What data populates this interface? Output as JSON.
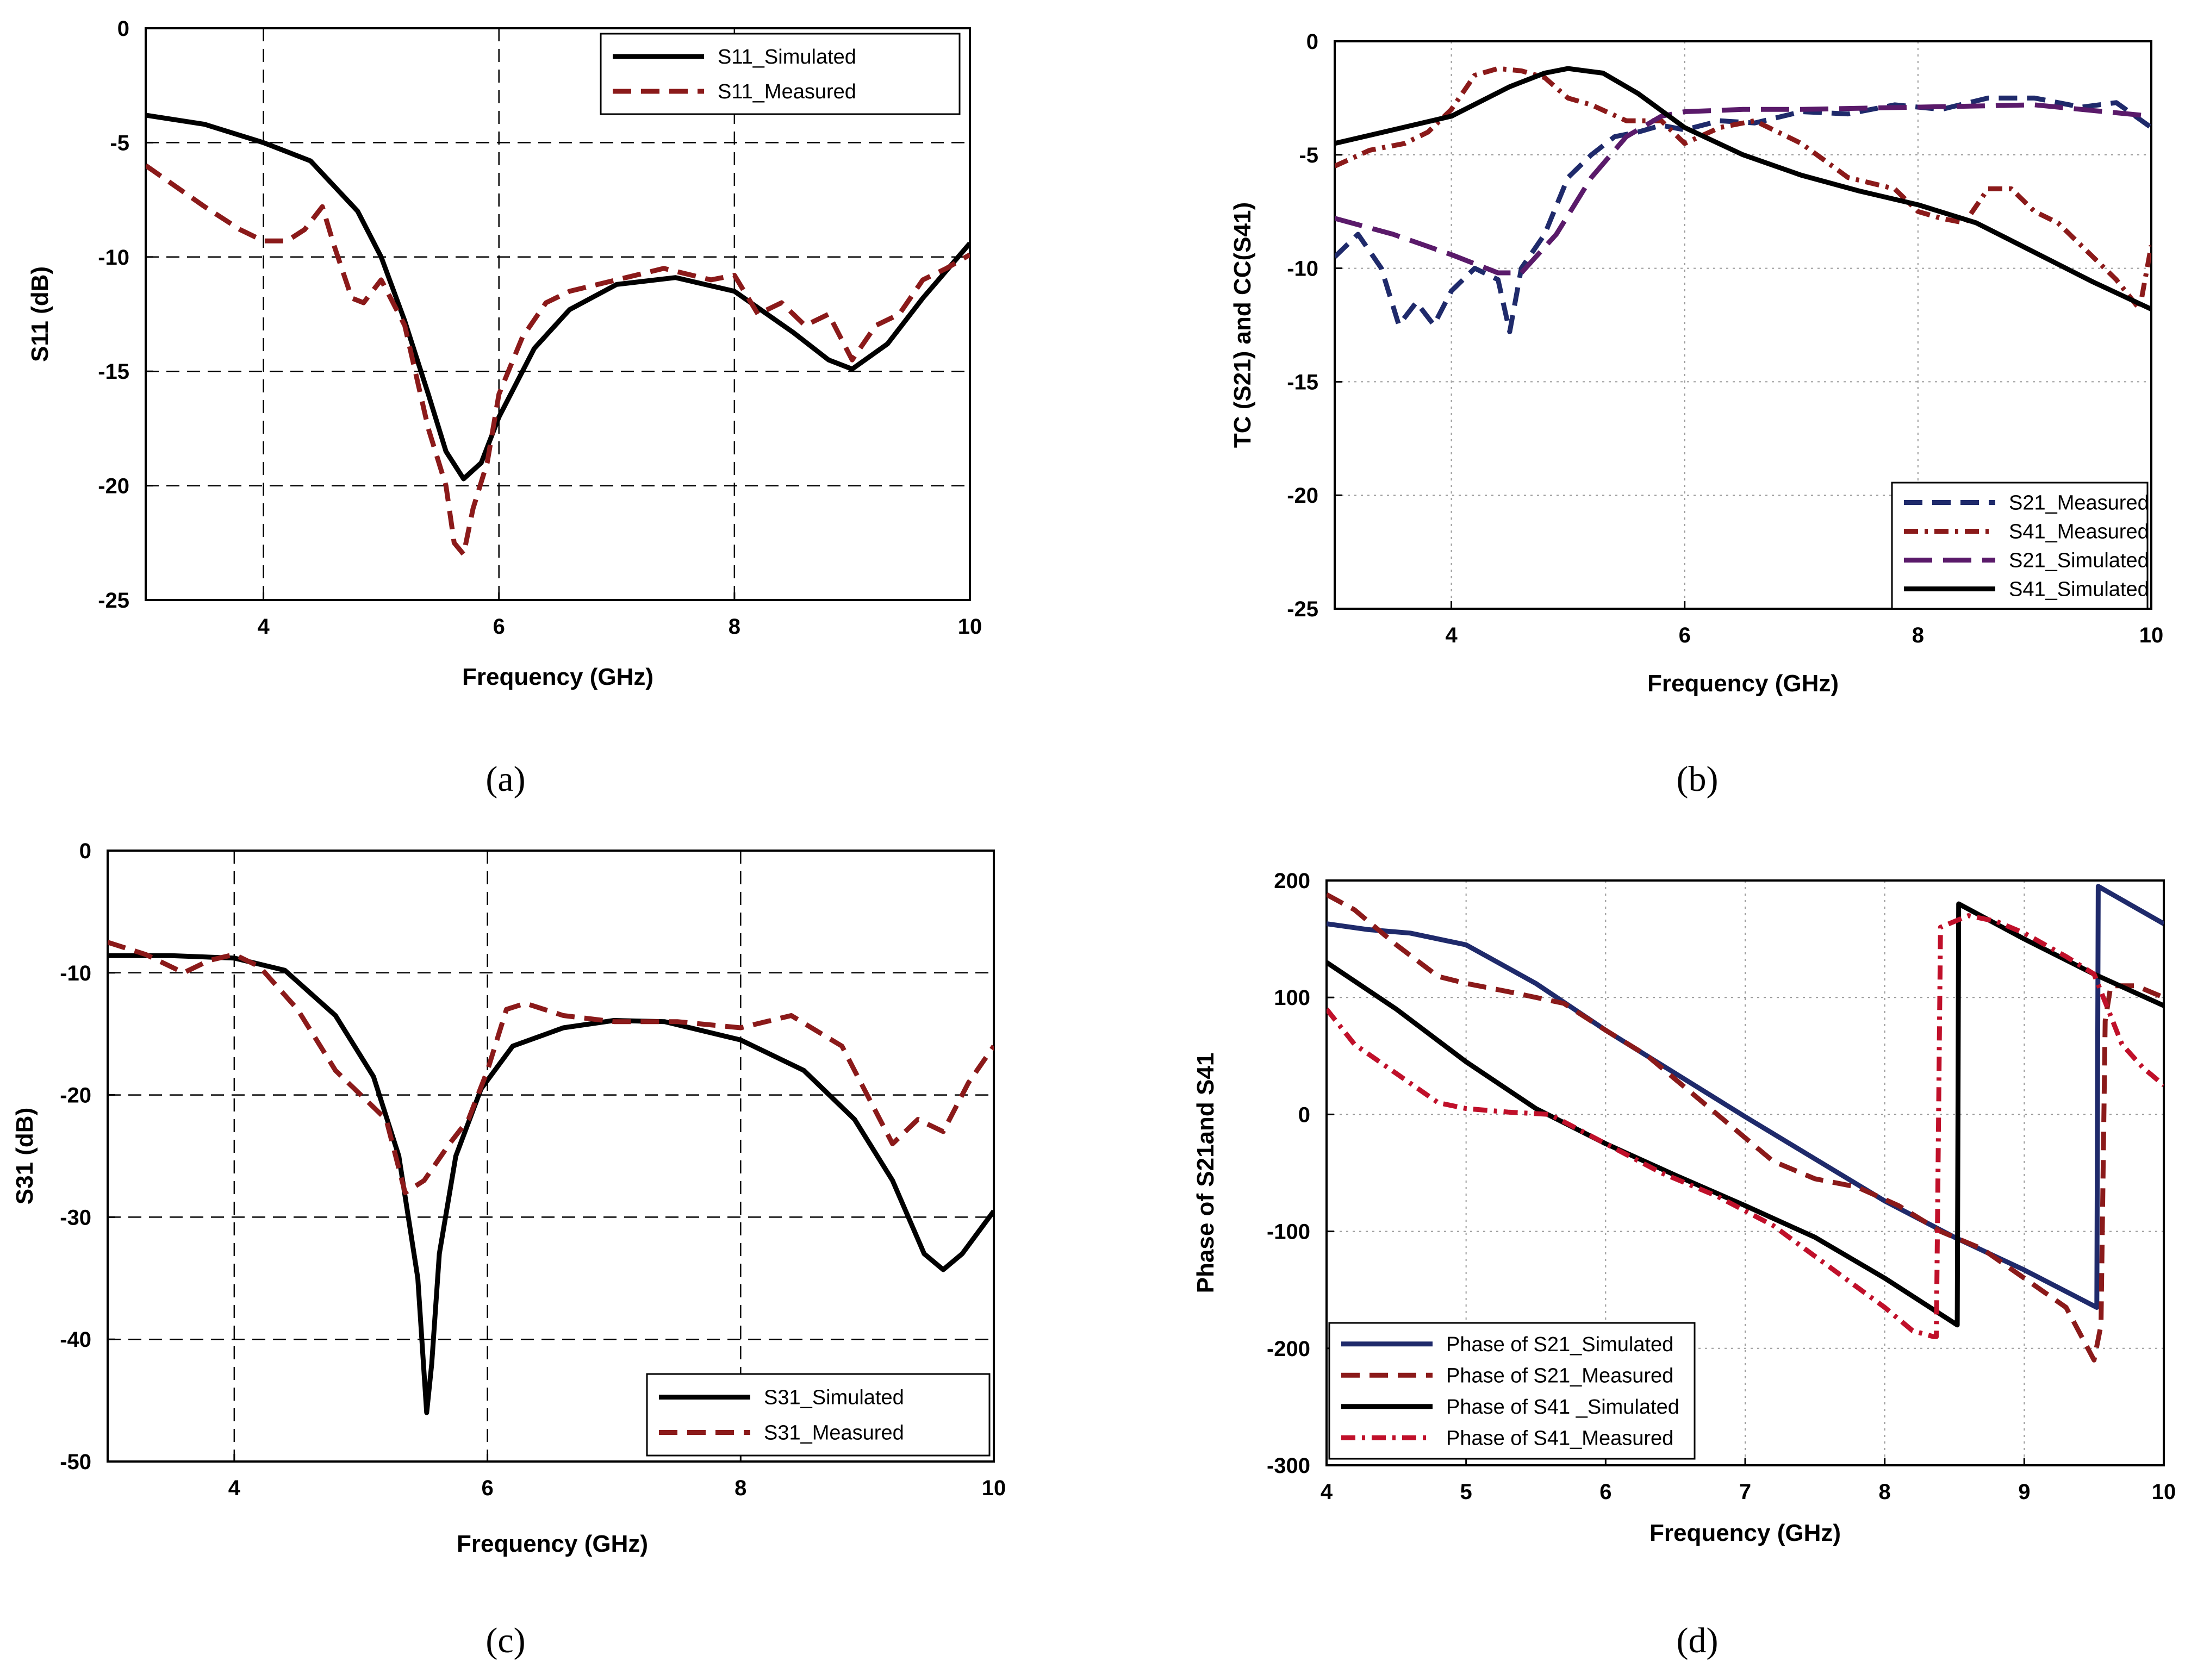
{
  "colors": {
    "black": "#000000",
    "darkred": "#8b1a1a",
    "navy": "#1f2a6b",
    "purple": "#5a1a6a",
    "grid": "#000000"
  },
  "chart_data": [
    {
      "id": "a",
      "caption": "(a)",
      "type": "line",
      "xlabel": "Frequency (GHz)",
      "ylabel": "S11 (dB)",
      "xlim": [
        3,
        10
      ],
      "ylim": [
        -25,
        0
      ],
      "xticks": [
        4,
        6,
        8,
        10
      ],
      "yticks": [
        0,
        -5,
        -10,
        -15,
        -20,
        -25
      ],
      "grid": "dashed",
      "legend_position": "top-right",
      "series": [
        {
          "name": "S11_Simulated",
          "style": "solid",
          "color": "#000000",
          "x": [
            3,
            3.5,
            4,
            4.4,
            4.8,
            5.0,
            5.2,
            5.4,
            5.55,
            5.7,
            5.85,
            6.0,
            6.3,
            6.6,
            7.0,
            7.5,
            8.0,
            8.5,
            8.8,
            9.0,
            9.3,
            9.6,
            10
          ],
          "y": [
            -3.8,
            -4.2,
            -5.0,
            -5.8,
            -8.0,
            -10.0,
            -12.8,
            -16.0,
            -18.5,
            -19.7,
            -19.0,
            -17.0,
            -14.0,
            -12.3,
            -11.2,
            -10.9,
            -11.5,
            -13.3,
            -14.5,
            -14.9,
            -13.8,
            -11.8,
            -9.4
          ]
        },
        {
          "name": "S11_Measured",
          "style": "dashed",
          "color": "#8b1a1a",
          "x": [
            3,
            3.5,
            3.8,
            4.0,
            4.2,
            4.35,
            4.5,
            4.6,
            4.75,
            4.85,
            5.0,
            5.2,
            5.4,
            5.55,
            5.62,
            5.7,
            5.78,
            5.9,
            6.0,
            6.2,
            6.4,
            6.6,
            7.0,
            7.4,
            7.8,
            8.0,
            8.2,
            8.4,
            8.6,
            8.8,
            9.0,
            9.2,
            9.4,
            9.6,
            9.8,
            10
          ],
          "y": [
            -6.0,
            -7.8,
            -8.8,
            -9.3,
            -9.3,
            -8.8,
            -7.8,
            -9.5,
            -11.8,
            -12.0,
            -11.0,
            -13.0,
            -17.5,
            -20.0,
            -22.5,
            -23.0,
            -21.0,
            -19.0,
            -16.0,
            -13.5,
            -12.0,
            -11.5,
            -11.0,
            -10.5,
            -11.0,
            -10.8,
            -12.5,
            -12.0,
            -13.0,
            -12.5,
            -14.5,
            -13.0,
            -12.5,
            -11.0,
            -10.5,
            -9.9
          ]
        }
      ]
    },
    {
      "id": "b",
      "caption": "(b)",
      "type": "line",
      "xlabel": "Frequency (GHz)",
      "ylabel": "TC (S21) and CC(S41)",
      "xlim": [
        3,
        10
      ],
      "ylim": [
        -25,
        0
      ],
      "xticks": [
        4,
        6,
        8,
        10
      ],
      "yticks": [
        0,
        -5,
        -10,
        -15,
        -20,
        -25
      ],
      "grid": "dotted",
      "legend_position": "bottom-right",
      "series": [
        {
          "name": "S21_Measured",
          "style": "dashed",
          "color": "#1f2a6b",
          "x": [
            3,
            3.2,
            3.4,
            3.55,
            3.7,
            3.85,
            4.0,
            4.2,
            4.4,
            4.5,
            4.6,
            4.8,
            5.0,
            5.2,
            5.4,
            5.6,
            5.8,
            6.0,
            6.3,
            6.6,
            7.0,
            7.4,
            7.8,
            8.2,
            8.6,
            9.0,
            9.4,
            9.7,
            10
          ],
          "y": [
            -9.5,
            -8.5,
            -10.0,
            -12.5,
            -11.5,
            -12.5,
            -11.0,
            -10.0,
            -10.5,
            -12.8,
            -10.0,
            -8.5,
            -6.0,
            -5.0,
            -4.2,
            -4.0,
            -3.7,
            -3.9,
            -3.5,
            -3.6,
            -3.1,
            -3.2,
            -2.8,
            -3.0,
            -2.5,
            -2.5,
            -2.9,
            -2.7,
            -3.8
          ]
        },
        {
          "name": "S41_Measured",
          "style": "dashdot",
          "color": "#8b1a1a",
          "x": [
            3,
            3.3,
            3.6,
            3.8,
            4.0,
            4.2,
            4.4,
            4.6,
            4.8,
            5.0,
            5.2,
            5.5,
            5.8,
            6.0,
            6.3,
            6.6,
            7.0,
            7.4,
            7.8,
            8.0,
            8.2,
            8.4,
            8.6,
            8.8,
            9.0,
            9.2,
            9.5,
            9.7,
            9.9,
            10
          ],
          "y": [
            -5.5,
            -4.8,
            -4.5,
            -4.0,
            -3.0,
            -1.5,
            -1.2,
            -1.3,
            -1.6,
            -2.5,
            -2.8,
            -3.5,
            -3.5,
            -4.5,
            -3.8,
            -3.5,
            -4.5,
            -6.0,
            -6.5,
            -7.5,
            -7.8,
            -8.0,
            -6.5,
            -6.5,
            -7.5,
            -8.0,
            -9.5,
            -10.5,
            -11.8,
            -9.0
          ]
        },
        {
          "name": "S21_Simulated",
          "style": "longdash",
          "color": "#5a1a6a",
          "x": [
            3,
            3.5,
            4.0,
            4.4,
            4.6,
            4.9,
            5.2,
            5.5,
            5.8,
            6.0,
            6.5,
            7.0,
            8.0,
            9.0,
            10
          ],
          "y": [
            -7.8,
            -8.5,
            -9.4,
            -10.2,
            -10.2,
            -8.5,
            -6.0,
            -4.2,
            -3.3,
            -3.1,
            -3.0,
            -3.0,
            -2.9,
            -2.8,
            -3.3
          ]
        },
        {
          "name": "S41_Simulated",
          "style": "solid",
          "color": "#000000",
          "x": [
            3,
            3.5,
            4.0,
            4.5,
            4.8,
            5.0,
            5.3,
            5.6,
            6.0,
            6.5,
            7.0,
            7.5,
            8.0,
            8.5,
            9.0,
            9.5,
            10
          ],
          "y": [
            -4.5,
            -3.9,
            -3.3,
            -2.0,
            -1.4,
            -1.2,
            -1.4,
            -2.3,
            -3.8,
            -5.0,
            -5.9,
            -6.6,
            -7.2,
            -8.0,
            -9.3,
            -10.6,
            -11.8
          ]
        }
      ]
    },
    {
      "id": "c",
      "caption": "(c)",
      "type": "line",
      "xlabel": "Frequency (GHz)",
      "ylabel": "S31 (dB)",
      "xlim": [
        3,
        10
      ],
      "ylim": [
        -50,
        0
      ],
      "xticks": [
        4,
        6,
        8,
        10
      ],
      "yticks": [
        0,
        -10,
        -20,
        -30,
        -40,
        -50
      ],
      "grid": "dashed",
      "legend_position": "bottom-right",
      "series": [
        {
          "name": "S31_Simulated",
          "style": "solid",
          "color": "#000000",
          "x": [
            3,
            3.5,
            4.0,
            4.4,
            4.8,
            5.1,
            5.3,
            5.45,
            5.52,
            5.56,
            5.62,
            5.75,
            5.95,
            6.2,
            6.6,
            7.0,
            7.4,
            8.0,
            8.5,
            8.9,
            9.2,
            9.45,
            9.6,
            9.75,
            10
          ],
          "y": [
            -8.6,
            -8.6,
            -8.8,
            -9.8,
            -13.5,
            -18.5,
            -25.0,
            -35.0,
            -46.0,
            -42.0,
            -33.0,
            -25.0,
            -19.5,
            -16.0,
            -14.5,
            -13.9,
            -14.0,
            -15.5,
            -18.0,
            -22.0,
            -27.0,
            -33.0,
            -34.3,
            -33.0,
            -29.5
          ]
        },
        {
          "name": "S31_Measured",
          "style": "dashed",
          "color": "#8b1a1a",
          "x": [
            3,
            3.3,
            3.6,
            3.8,
            4.0,
            4.2,
            4.5,
            4.8,
            5.0,
            5.2,
            5.35,
            5.5,
            5.7,
            5.85,
            6.0,
            6.15,
            6.3,
            6.6,
            7.0,
            7.5,
            8.0,
            8.4,
            8.8,
            9.0,
            9.2,
            9.4,
            9.6,
            9.8,
            10
          ],
          "y": [
            -7.5,
            -8.5,
            -10.0,
            -9.0,
            -8.5,
            -9.5,
            -13.0,
            -18.0,
            -20.0,
            -22.0,
            -28.0,
            -27.0,
            -24.0,
            -22.0,
            -18.0,
            -13.0,
            -12.5,
            -13.5,
            -14.0,
            -14.0,
            -14.5,
            -13.5,
            -16.0,
            -20.0,
            -24.0,
            -22.0,
            -23.0,
            -19.0,
            -16.0
          ]
        }
      ]
    },
    {
      "id": "d",
      "caption": "(d)",
      "type": "line",
      "xlabel": "Frequency (GHz)",
      "ylabel": "Phase of S21and S41",
      "xlim": [
        4,
        10
      ],
      "ylim": [
        -300,
        200
      ],
      "xticks": [
        4,
        5,
        6,
        7,
        8,
        9,
        10
      ],
      "yticks": [
        200,
        100,
        0,
        -100,
        -200,
        -300
      ],
      "grid": "dotted",
      "legend_position": "bottom-left",
      "series": [
        {
          "name": "Phase of S21_Simulated",
          "style": "solid",
          "color": "#1f2a6b",
          "x": [
            4.0,
            4.3,
            4.6,
            5.0,
            5.5,
            6.0,
            6.5,
            7.0,
            7.5,
            8.0,
            8.5,
            9.0,
            9.52,
            9.53,
            10.0
          ],
          "y": [
            163,
            158,
            155,
            145,
            112,
            72,
            35,
            -2,
            -38,
            -74,
            -105,
            -133,
            -165,
            195,
            163
          ]
        },
        {
          "name": "Phase of S21_Measured",
          "style": "dashed",
          "color": "#8b1a1a",
          "x": [
            4.0,
            4.2,
            4.5,
            4.8,
            5.0,
            5.3,
            5.7,
            6.0,
            6.3,
            6.6,
            6.9,
            7.2,
            7.5,
            7.8,
            8.1,
            8.4,
            8.7,
            9.0,
            9.3,
            9.5,
            9.55,
            9.58,
            9.62,
            9.8,
            10.0
          ],
          "y": [
            188,
            175,
            145,
            118,
            112,
            105,
            95,
            72,
            50,
            20,
            -10,
            -40,
            -55,
            -62,
            -78,
            -100,
            -115,
            -140,
            -165,
            -210,
            -180,
            80,
            110,
            110,
            100
          ]
        },
        {
          "name": "Phase of S41 _Simulated",
          "style": "solid",
          "color": "#000000",
          "x": [
            4.0,
            4.5,
            5.0,
            5.5,
            6.0,
            6.5,
            7.0,
            7.5,
            8.0,
            8.52,
            8.53,
            9.0,
            9.5,
            10.0
          ],
          "y": [
            130,
            90,
            45,
            5,
            -25,
            -52,
            -78,
            -105,
            -140,
            -180,
            180,
            150,
            120,
            93
          ]
        },
        {
          "name": "Phase of S41_Measured",
          "style": "dashdot",
          "color": "#c0102a",
          "x": [
            4.0,
            4.2,
            4.5,
            4.8,
            5.0,
            5.3,
            5.6,
            6.0,
            6.4,
            6.8,
            7.2,
            7.6,
            8.0,
            8.2,
            8.35,
            8.37,
            8.4,
            8.6,
            8.8,
            9.0,
            9.3,
            9.5,
            9.7,
            9.85,
            10.0
          ],
          "y": [
            90,
            60,
            35,
            10,
            5,
            2,
            0,
            -25,
            -50,
            -70,
            -95,
            -130,
            -165,
            -185,
            -190,
            -190,
            160,
            170,
            165,
            155,
            135,
            120,
            60,
            40,
            25
          ]
        }
      ]
    }
  ]
}
